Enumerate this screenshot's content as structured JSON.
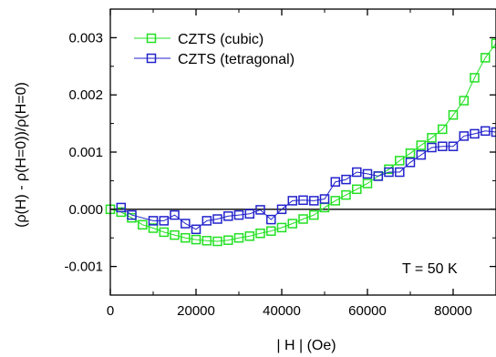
{
  "chart_data": {
    "type": "scatter",
    "xlabel": "| H | (Oe)",
    "ylabel": "(ρ(H) - ρ(H=0))/ρ(H=0)",
    "xlim": [
      0,
      90000
    ],
    "ylim": [
      -0.0015,
      0.0035
    ],
    "xticks": [
      0,
      20000,
      40000,
      60000,
      80000
    ],
    "xtick_labels": [
      "0",
      "20000",
      "40000",
      "60000",
      "80000"
    ],
    "yticks": [
      -0.001,
      0.0,
      0.001,
      0.002,
      0.003
    ],
    "ytick_labels": [
      "-0.001",
      "0.000",
      "0.001",
      "0.002",
      "0.003"
    ],
    "zero_line": 0,
    "grid": false,
    "legend_position": "top-left",
    "annotation": "T = 50 K",
    "series": [
      {
        "name": "CZTS (cubic)",
        "color": "#22e022",
        "marker": "open-square",
        "connected": true,
        "x": [
          0,
          2500,
          5000,
          7500,
          10000,
          12500,
          15000,
          17500,
          20000,
          22500,
          25000,
          27500,
          30000,
          32500,
          35000,
          37500,
          40000,
          42500,
          45000,
          47500,
          50000,
          52500,
          55000,
          57500,
          60000,
          62500,
          65000,
          67500,
          70000,
          72500,
          75000,
          77500,
          80000,
          82500,
          85000,
          87500,
          90000
        ],
        "y": [
          0.0,
          -5e-05,
          -0.00015,
          -0.00027,
          -0.00033,
          -0.0004,
          -0.00045,
          -0.0005,
          -0.00053,
          -0.00055,
          -0.00056,
          -0.00054,
          -0.0005,
          -0.00047,
          -0.00042,
          -0.00038,
          -0.00032,
          -0.00025,
          -0.00017,
          -0.0001,
          3e-05,
          0.00015,
          0.00025,
          0.00035,
          0.00045,
          0.00058,
          0.0007,
          0.00085,
          0.00098,
          0.00112,
          0.00125,
          0.0014,
          0.00165,
          0.0019,
          0.0023,
          0.00265,
          0.0029
        ]
      },
      {
        "name": "CZTS (tetragonal)",
        "color": "#2222cc",
        "marker": "open-square",
        "connected": true,
        "x": [
          2500,
          5000,
          10000,
          12500,
          15000,
          17500,
          20000,
          22500,
          25000,
          27500,
          30000,
          32500,
          35000,
          37500,
          40000,
          42500,
          45000,
          47500,
          50000,
          52500,
          55000,
          57500,
          60000,
          62500,
          65000,
          67500,
          70000,
          72500,
          75000,
          77500,
          80000,
          82500,
          85000,
          87500,
          90000
        ],
        "y": [
          3e-05,
          -0.0001,
          -0.0002,
          -0.0002,
          -0.0001,
          -0.00025,
          -0.00035,
          -0.0002,
          -0.00017,
          -0.00012,
          -0.0001,
          -8e-05,
          -1e-05,
          -0.00018,
          0.0,
          0.00015,
          0.00016,
          0.00015,
          0.00018,
          0.00048,
          0.00052,
          0.00065,
          0.00062,
          0.00058,
          0.00065,
          0.00065,
          0.00082,
          0.00095,
          0.00108,
          0.0011,
          0.0011,
          0.00128,
          0.00132,
          0.00137,
          0.00135
        ]
      }
    ]
  }
}
